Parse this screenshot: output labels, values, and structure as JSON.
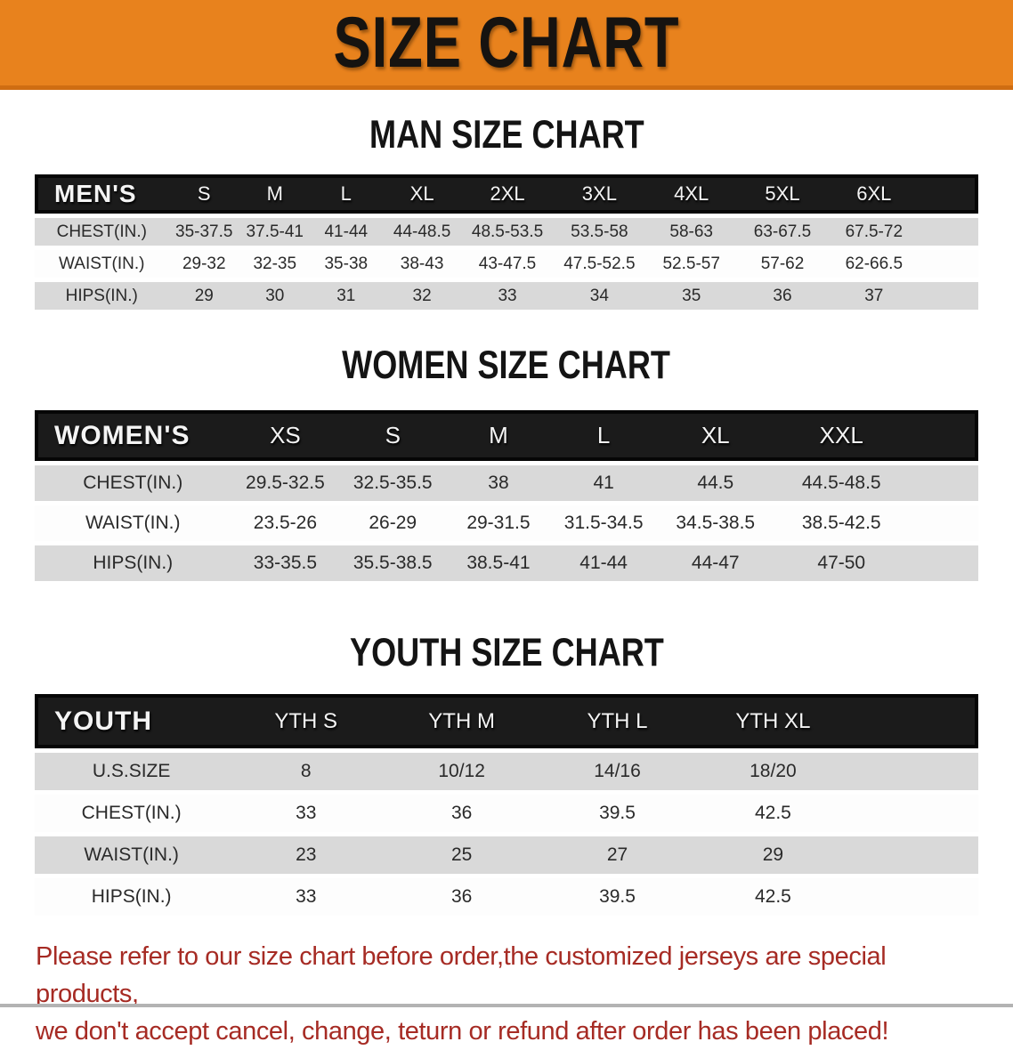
{
  "banner": {
    "title": "SIZE CHART",
    "bg_color": "#E8821D",
    "border_color": "#CF6D12",
    "text_color": "#161310"
  },
  "sections": {
    "men": {
      "heading": "MAN SIZE CHART"
    },
    "women": {
      "heading": "WOMEN SIZE CHART"
    },
    "youth": {
      "heading": "YOUTH SIZE CHART"
    }
  },
  "tables": [
    {
      "id": "mens",
      "header_label": "MEN'S",
      "columns": [
        "S",
        "M",
        "L",
        "XL",
        "2XL",
        "3XL",
        "4XL",
        "5XL",
        "6XL"
      ],
      "rows": [
        {
          "label": "CHEST(IN.)",
          "values": [
            "35-37.5",
            "37.5-41",
            "41-44",
            "44-48.5",
            "48.5-53.5",
            "53.5-58",
            "58-63",
            "63-67.5",
            "67.5-72"
          ]
        },
        {
          "label": "WAIST(IN.)",
          "values": [
            "29-32",
            "32-35",
            "35-38",
            "38-43",
            "43-47.5",
            "47.5-52.5",
            "52.5-57",
            "57-62",
            "62-66.5"
          ]
        },
        {
          "label": "HIPS(IN.)",
          "values": [
            "29",
            "30",
            "31",
            "32",
            "33",
            "34",
            "35",
            "36",
            "37"
          ]
        }
      ]
    },
    {
      "id": "womens",
      "header_label": "WOMEN'S",
      "columns": [
        "XS",
        "S",
        "M",
        "L",
        "XL",
        "XXL"
      ],
      "rows": [
        {
          "label": "CHEST(IN.)",
          "values": [
            "29.5-32.5",
            "32.5-35.5",
            "38",
            "41",
            "44.5",
            "44.5-48.5"
          ]
        },
        {
          "label": "WAIST(IN.)",
          "values": [
            "23.5-26",
            "26-29",
            "29-31.5",
            "31.5-34.5",
            "34.5-38.5",
            "38.5-42.5"
          ]
        },
        {
          "label": "HIPS(IN.)",
          "values": [
            "33-35.5",
            "35.5-38.5",
            "38.5-41",
            "41-44",
            "44-47",
            "47-50"
          ]
        }
      ]
    },
    {
      "id": "youth",
      "header_label": "YOUTH",
      "columns": [
        "YTH S",
        "YTH M",
        "YTH L",
        "YTH XL"
      ],
      "rows": [
        {
          "label": "U.S.SIZE",
          "values": [
            "8",
            "10/12",
            "14/16",
            "18/20"
          ]
        },
        {
          "label": "CHEST(IN.)",
          "values": [
            "33",
            "36",
            "39.5",
            "42.5"
          ]
        },
        {
          "label": "WAIST(IN.)",
          "values": [
            "23",
            "25",
            "27",
            "29"
          ]
        },
        {
          "label": "HIPS(IN.)",
          "values": [
            "33",
            "36",
            "39.5",
            "42.5"
          ]
        }
      ]
    }
  ],
  "footer": {
    "line1": "Please refer to our size chart before order,the customized jerseys are special products,",
    "line2": "we don't accept cancel, change, teturn or refund after order has been placed!",
    "text_color": "#A62B24"
  },
  "style_colors": {
    "table_header_bg": "#1B1B1B",
    "row_stripe_gray": "#D9D9D9",
    "row_stripe_white": "#FDFDFD"
  }
}
